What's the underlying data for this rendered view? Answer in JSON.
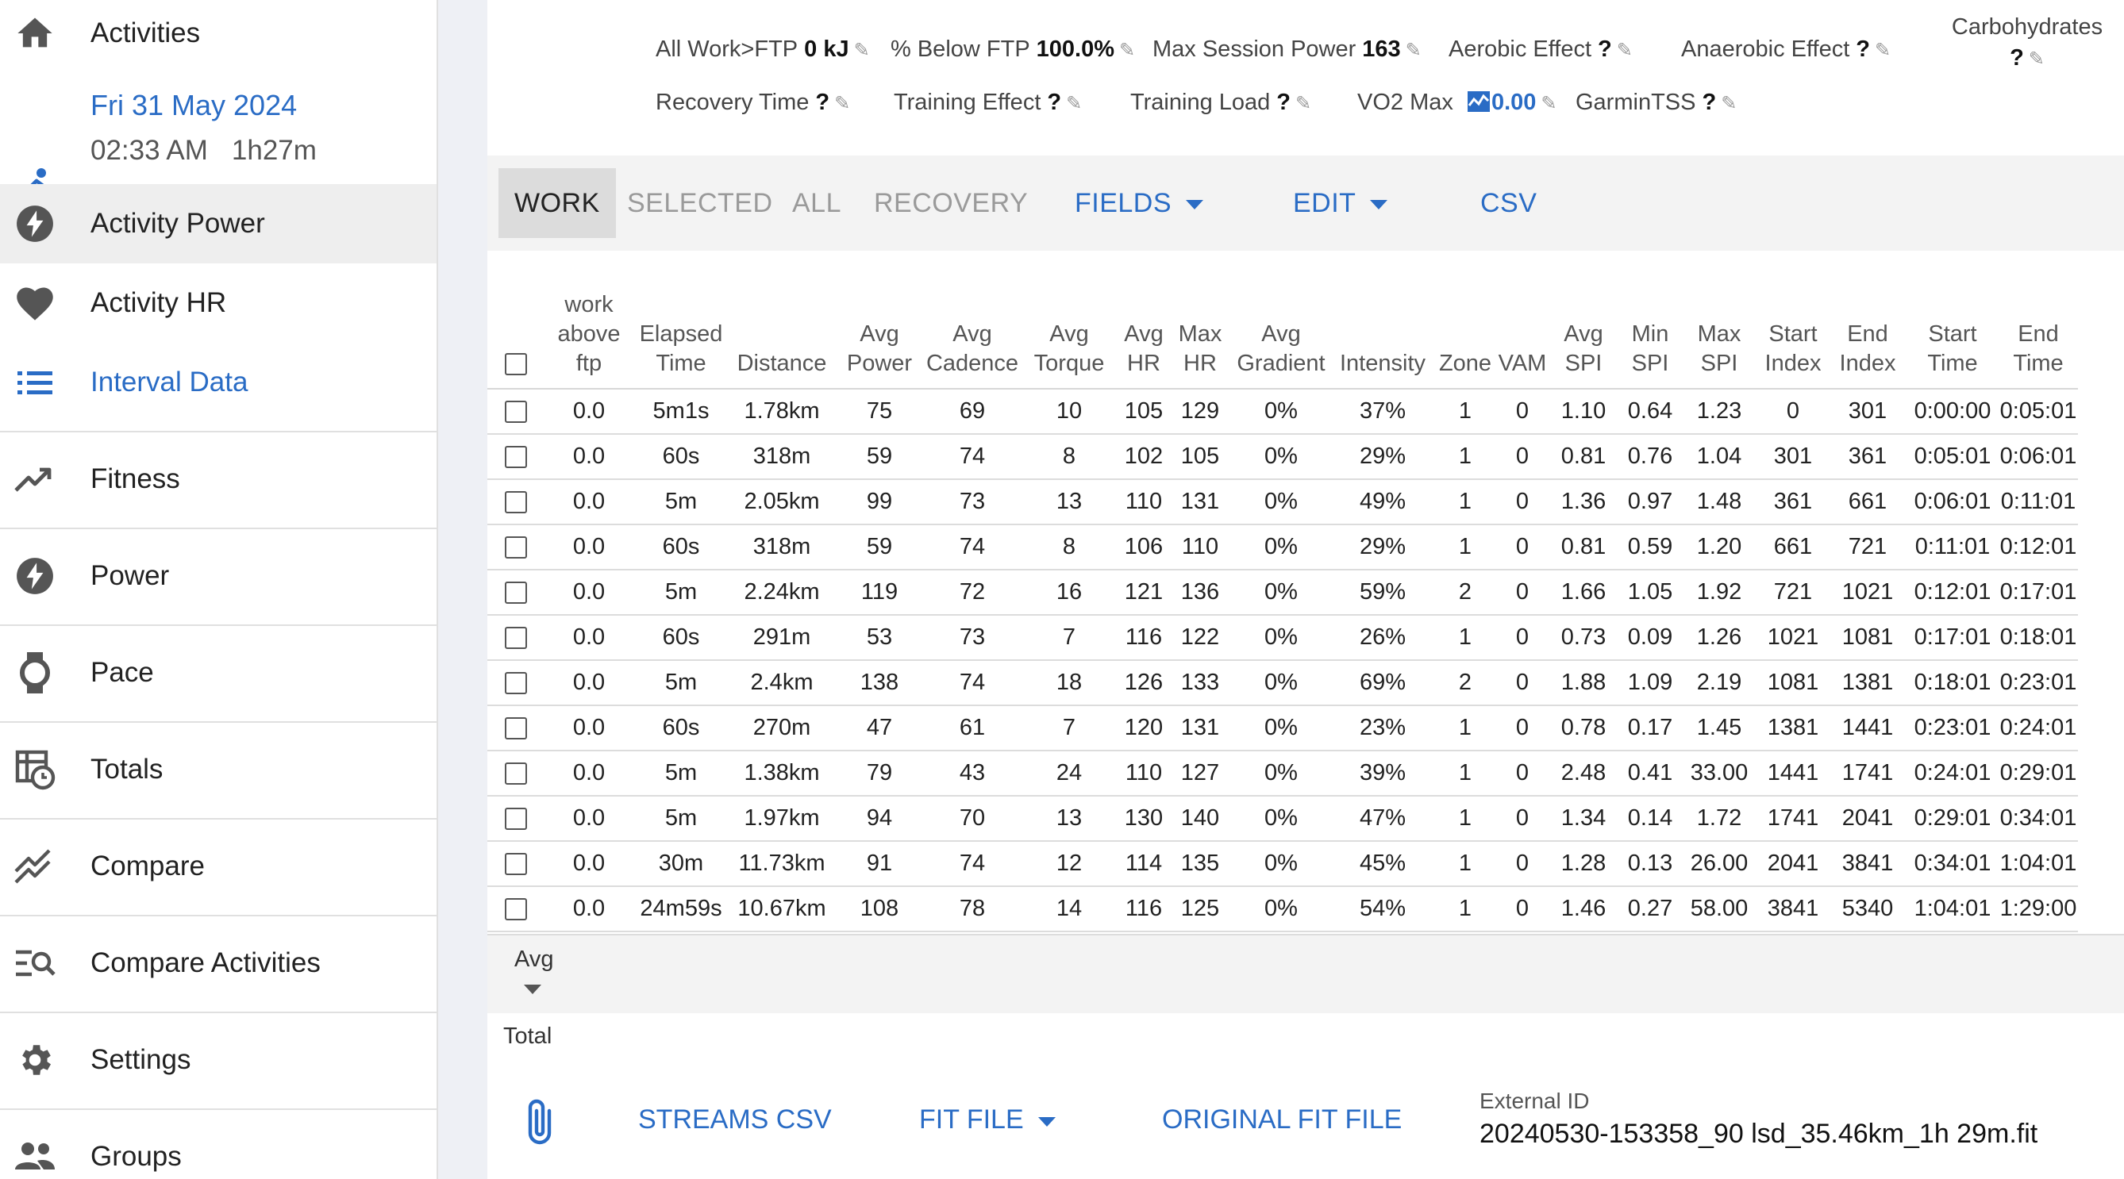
{
  "sidebar": {
    "activities_label": "Activities",
    "activity": {
      "date": "Fri 31 May 2024",
      "time": "02:33 AM",
      "duration": "1h27m"
    },
    "activity_power_label": "Activity Power",
    "activity_hr_label": "Activity HR",
    "interval_data_label": "Interval Data",
    "fitness_label": "Fitness",
    "power_label": "Power",
    "pace_label": "Pace",
    "totals_label": "Totals",
    "compare_label": "Compare",
    "compare_activities_label": "Compare Activities",
    "settings_label": "Settings",
    "groups_label": "Groups",
    "accent_color": "#2a6cc5"
  },
  "metrics": {
    "all_work_ftp": {
      "label": "All Work>FTP",
      "value": "0 kJ"
    },
    "below_ftp": {
      "label": "% Below FTP",
      "value": "100.0%"
    },
    "max_session_power": {
      "label": "Max Session Power",
      "value": "163"
    },
    "aerobic_effect": {
      "label": "Aerobic Effect",
      "value": "?"
    },
    "anaerobic_effect": {
      "label": "Anaerobic Effect",
      "value": "?"
    },
    "carbohydrates": {
      "label": "Carbohydrates",
      "value": "?"
    },
    "recovery_time": {
      "label": "Recovery Time",
      "value": "?"
    },
    "training_effect": {
      "label": "Training Effect",
      "value": "?"
    },
    "training_load": {
      "label": "Training Load",
      "value": "?"
    },
    "vo2_max": {
      "label": "VO2 Max",
      "value": "0.00"
    },
    "garmin_tss": {
      "label": "GarminTSS",
      "value": "?"
    }
  },
  "toolbar": {
    "work": "WORK",
    "selected": "SELECTED",
    "all": "ALL",
    "recovery": "RECOVERY",
    "fields": "FIELDS",
    "edit": "EDIT",
    "csv": "CSV"
  },
  "table": {
    "headers": {
      "work_above_ftp": [
        "work",
        "above",
        "ftp"
      ],
      "elapsed_time": [
        "Elapsed",
        "Time"
      ],
      "distance": [
        "Distance"
      ],
      "avg_power": [
        "Avg",
        "Power"
      ],
      "avg_cadence": [
        "Avg",
        "Cadence"
      ],
      "avg_torque": [
        "Avg",
        "Torque"
      ],
      "avg_hr": [
        "Avg",
        "HR"
      ],
      "max_hr": [
        "Max",
        "HR"
      ],
      "avg_gradient": [
        "Avg",
        "Gradient"
      ],
      "intensity": [
        "Intensity"
      ],
      "zone": [
        "Zone"
      ],
      "vam": [
        "VAM"
      ],
      "avg_spi": [
        "Avg",
        "SPI"
      ],
      "min_spi": [
        "Min",
        "SPI"
      ],
      "max_spi": [
        "Max",
        "SPI"
      ],
      "start_index": [
        "Start",
        "Index"
      ],
      "end_index": [
        "End",
        "Index"
      ],
      "start_time": [
        "Start",
        "Time"
      ],
      "end_time": [
        "End",
        "Time"
      ]
    },
    "rows": [
      [
        "0.0",
        "5m1s",
        "1.78km",
        "75",
        "69",
        "10",
        "105",
        "129",
        "0%",
        "37%",
        "1",
        "0",
        "1.10",
        "0.64",
        "1.23",
        "0",
        "301",
        "0:00:00",
        "0:05:01"
      ],
      [
        "0.0",
        "60s",
        "318m",
        "59",
        "74",
        "8",
        "102",
        "105",
        "0%",
        "29%",
        "1",
        "0",
        "0.81",
        "0.76",
        "1.04",
        "301",
        "361",
        "0:05:01",
        "0:06:01"
      ],
      [
        "0.0",
        "5m",
        "2.05km",
        "99",
        "73",
        "13",
        "110",
        "131",
        "0%",
        "49%",
        "1",
        "0",
        "1.36",
        "0.97",
        "1.48",
        "361",
        "661",
        "0:06:01",
        "0:11:01"
      ],
      [
        "0.0",
        "60s",
        "318m",
        "59",
        "74",
        "8",
        "106",
        "110",
        "0%",
        "29%",
        "1",
        "0",
        "0.81",
        "0.59",
        "1.20",
        "661",
        "721",
        "0:11:01",
        "0:12:01"
      ],
      [
        "0.0",
        "5m",
        "2.24km",
        "119",
        "72",
        "16",
        "121",
        "136",
        "0%",
        "59%",
        "2",
        "0",
        "1.66",
        "1.05",
        "1.92",
        "721",
        "1021",
        "0:12:01",
        "0:17:01"
      ],
      [
        "0.0",
        "60s",
        "291m",
        "53",
        "73",
        "7",
        "116",
        "122",
        "0%",
        "26%",
        "1",
        "0",
        "0.73",
        "0.09",
        "1.26",
        "1021",
        "1081",
        "0:17:01",
        "0:18:01"
      ],
      [
        "0.0",
        "5m",
        "2.4km",
        "138",
        "74",
        "18",
        "126",
        "133",
        "0%",
        "69%",
        "2",
        "0",
        "1.88",
        "1.09",
        "2.19",
        "1081",
        "1381",
        "0:18:01",
        "0:23:01"
      ],
      [
        "0.0",
        "60s",
        "270m",
        "47",
        "61",
        "7",
        "120",
        "131",
        "0%",
        "23%",
        "1",
        "0",
        "0.78",
        "0.17",
        "1.45",
        "1381",
        "1441",
        "0:23:01",
        "0:24:01"
      ],
      [
        "0.0",
        "5m",
        "1.38km",
        "79",
        "43",
        "24",
        "110",
        "127",
        "0%",
        "39%",
        "1",
        "0",
        "2.48",
        "0.41",
        "33.00",
        "1441",
        "1741",
        "0:24:01",
        "0:29:01"
      ],
      [
        "0.0",
        "5m",
        "1.97km",
        "94",
        "70",
        "13",
        "130",
        "140",
        "0%",
        "47%",
        "1",
        "0",
        "1.34",
        "0.14",
        "1.72",
        "1741",
        "2041",
        "0:29:01",
        "0:34:01"
      ],
      [
        "0.0",
        "30m",
        "11.73km",
        "91",
        "74",
        "12",
        "114",
        "135",
        "0%",
        "45%",
        "1",
        "0",
        "1.28",
        "0.13",
        "26.00",
        "2041",
        "3841",
        "0:34:01",
        "1:04:01"
      ],
      [
        "0.0",
        "24m59s",
        "10.67km",
        "108",
        "78",
        "14",
        "116",
        "125",
        "0%",
        "54%",
        "1",
        "0",
        "1.46",
        "0.27",
        "58.00",
        "3841",
        "5340",
        "1:04:01",
        "1:29:00"
      ]
    ],
    "avg_label": "Avg",
    "total_label": "Total"
  },
  "footer": {
    "streams_csv": "STREAMS CSV",
    "fit_file": "FIT FILE",
    "original_fit_file": "ORIGINAL FIT FILE",
    "external_id_label": "External ID",
    "external_id_value": "20240530-153358_90 lsd_35.46km_1h 29m.fit"
  }
}
